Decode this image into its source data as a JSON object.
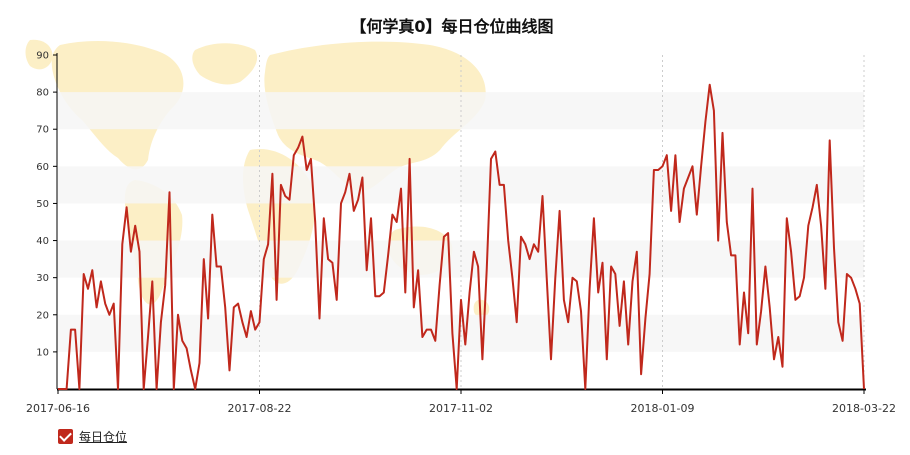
{
  "chart_data": {
    "type": "line",
    "title": "【何学真0】每日仓位曲线图",
    "xlabel": "",
    "ylabel": "",
    "ylim": [
      0,
      90
    ],
    "yticks": [
      10,
      20,
      30,
      40,
      50,
      60,
      70,
      80,
      90
    ],
    "xtick_labels": [
      "2017-06-16",
      "2017-08-22",
      "2017-11-02",
      "2018-01-09",
      "2018-03-22"
    ],
    "grid": "horizontal-bands",
    "legend_position": "bottom-left",
    "line_color": "#c0281c",
    "series": [
      {
        "name": "每日仓位",
        "values": [
          0,
          0,
          0,
          16,
          16,
          0,
          31,
          27,
          32,
          22,
          29,
          23,
          20,
          23,
          0,
          39,
          49,
          37,
          44,
          37,
          0,
          14,
          29,
          0,
          18,
          28,
          53,
          0,
          20,
          13,
          11,
          5,
          0,
          7,
          35,
          19,
          47,
          33,
          33,
          22,
          5,
          22,
          23,
          18,
          14,
          21,
          16,
          18,
          35,
          39,
          58,
          24,
          55,
          52,
          51,
          63,
          65,
          68,
          59,
          62,
          45,
          19,
          46,
          35,
          34,
          24,
          50,
          53,
          58,
          48,
          51,
          57,
          32,
          46,
          25,
          25,
          26,
          36,
          47,
          45,
          54,
          26,
          62,
          22,
          32,
          14,
          16,
          16,
          13,
          28,
          41,
          42,
          15,
          0,
          24,
          12,
          26,
          37,
          33,
          8,
          32,
          62,
          64,
          55,
          55,
          40,
          30,
          18,
          41,
          39,
          35,
          39,
          37,
          52,
          30,
          8,
          30,
          48,
          24,
          18,
          30,
          29,
          21,
          0,
          27,
          46,
          26,
          34,
          8,
          33,
          31,
          17,
          29,
          12,
          29,
          37,
          4,
          19,
          31,
          59,
          59,
          60,
          63,
          48,
          63,
          45,
          54,
          57,
          60,
          47,
          60,
          72,
          82,
          75,
          40,
          69,
          45,
          36,
          36,
          12,
          26,
          15,
          54,
          12,
          21,
          33,
          22,
          8,
          14,
          6,
          46,
          37,
          24,
          25,
          30,
          44,
          49,
          55,
          44,
          27,
          67,
          38,
          18,
          13,
          31,
          30,
          27,
          23,
          0
        ]
      }
    ]
  },
  "legend": {
    "label": "每日仓位",
    "checked": true
  },
  "colors": {
    "line": "#c0281c",
    "axis": "#000000",
    "band": "#f6f6f6",
    "map": "#fbeab4"
  }
}
